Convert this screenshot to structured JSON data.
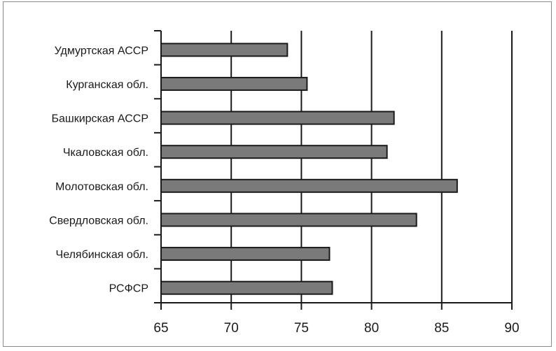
{
  "chart_data": {
    "type": "bar",
    "orientation": "horizontal",
    "categories": [
      "Удмуртская АССР",
      "Курганская обл.",
      "Башкирская АССР",
      "Чкаловская обл.",
      "Молотовская обл.",
      "Свердловская обл.",
      "Челябинская обл.",
      "РСФСР"
    ],
    "values": [
      74.0,
      75.4,
      81.6,
      81.1,
      86.1,
      83.2,
      77.0,
      77.2
    ],
    "xlim": [
      65,
      90
    ],
    "xticks": [
      "65",
      "70",
      "75",
      "80",
      "85",
      "90"
    ],
    "title": "",
    "xlabel": "",
    "ylabel": "",
    "grid": "vertical",
    "colors": {
      "bar": "#7a7a7a",
      "bar_border": "#1a1a1a",
      "grid": "#1a1a1a"
    }
  }
}
